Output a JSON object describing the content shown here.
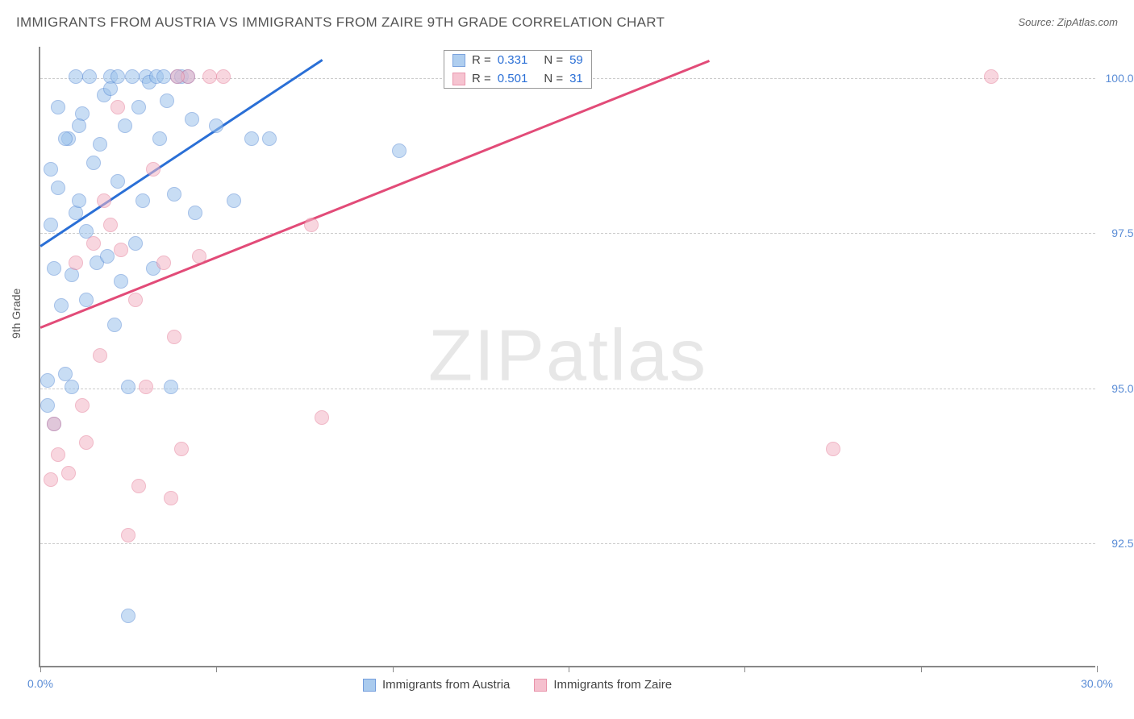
{
  "title": "IMMIGRANTS FROM AUSTRIA VS IMMIGRANTS FROM ZAIRE 9TH GRADE CORRELATION CHART",
  "source": "Source: ZipAtlas.com",
  "ylabel": "9th Grade",
  "watermark_a": "ZIP",
  "watermark_b": "atlas",
  "chart": {
    "type": "scatter",
    "xlim": [
      0,
      30
    ],
    "ylim": [
      90.5,
      100.5
    ],
    "yticks": [
      {
        "v": 92.5,
        "label": "92.5%"
      },
      {
        "v": 95.0,
        "label": "95.0%"
      },
      {
        "v": 97.5,
        "label": "97.5%"
      },
      {
        "v": 100.0,
        "label": "100.0%"
      }
    ],
    "xticks_major": [
      0,
      30
    ],
    "xticks_minor": [
      5,
      10,
      15,
      20,
      25
    ],
    "xlabels": [
      {
        "v": 0,
        "label": "0.0%"
      },
      {
        "v": 30,
        "label": "30.0%"
      }
    ],
    "background_color": "#ffffff",
    "grid_color": "#cccccc",
    "series": [
      {
        "name": "Immigrants from Austria",
        "color_fill": "#9cc3ec",
        "color_stroke": "#5b8dd6",
        "fill_opacity": 0.55,
        "marker_radius": 9,
        "r_value": "0.331",
        "n_value": "59",
        "trend": {
          "x1": 0,
          "y1": 97.3,
          "x2": 8.0,
          "y2": 100.3,
          "color": "#2a6fd6"
        },
        "points": [
          [
            0.3,
            97.6
          ],
          [
            0.5,
            98.2
          ],
          [
            0.4,
            96.9
          ],
          [
            0.8,
            99.0
          ],
          [
            1.0,
            100.0
          ],
          [
            1.2,
            99.4
          ],
          [
            1.4,
            100.0
          ],
          [
            1.5,
            98.6
          ],
          [
            1.6,
            97.0
          ],
          [
            1.8,
            99.7
          ],
          [
            2.0,
            100.0
          ],
          [
            2.0,
            99.8
          ],
          [
            2.2,
            98.3
          ],
          [
            2.2,
            100.0
          ],
          [
            2.3,
            96.7
          ],
          [
            2.4,
            99.2
          ],
          [
            2.6,
            100.0
          ],
          [
            2.7,
            97.3
          ],
          [
            2.8,
            99.5
          ],
          [
            2.9,
            98.0
          ],
          [
            3.0,
            100.0
          ],
          [
            3.1,
            99.9
          ],
          [
            3.2,
            96.9
          ],
          [
            3.3,
            100.0
          ],
          [
            3.4,
            99.0
          ],
          [
            3.5,
            100.0
          ],
          [
            3.6,
            99.6
          ],
          [
            3.7,
            95.0
          ],
          [
            3.8,
            98.1
          ],
          [
            3.9,
            100.0
          ],
          [
            4.0,
            100.0
          ],
          [
            4.2,
            100.0
          ],
          [
            4.3,
            99.3
          ],
          [
            4.4,
            97.8
          ],
          [
            1.0,
            97.8
          ],
          [
            0.6,
            96.3
          ],
          [
            0.7,
            95.2
          ],
          [
            0.9,
            95.0
          ],
          [
            1.1,
            98.0
          ],
          [
            1.3,
            97.5
          ],
          [
            1.7,
            98.9
          ],
          [
            1.9,
            97.1
          ],
          [
            2.1,
            96.0
          ],
          [
            2.5,
            95.0
          ],
          [
            0.2,
            94.7
          ],
          [
            0.4,
            94.4
          ],
          [
            5.0,
            99.2
          ],
          [
            5.5,
            98.0
          ],
          [
            6.0,
            99.0
          ],
          [
            6.5,
            99.0
          ],
          [
            2.5,
            91.3
          ],
          [
            0.9,
            96.8
          ],
          [
            1.3,
            96.4
          ],
          [
            0.5,
            99.5
          ],
          [
            0.7,
            99.0
          ],
          [
            0.3,
            98.5
          ],
          [
            0.2,
            95.1
          ],
          [
            10.2,
            98.8
          ],
          [
            1.1,
            99.2
          ]
        ]
      },
      {
        "name": "Immigrants from Zaire",
        "color_fill": "#f4b6c6",
        "color_stroke": "#e57f9b",
        "fill_opacity": 0.55,
        "marker_radius": 9,
        "r_value": "0.501",
        "n_value": "31",
        "trend": {
          "x1": 0,
          "y1": 96.0,
          "x2": 19.0,
          "y2": 100.3,
          "color": "#e24b78"
        },
        "points": [
          [
            0.4,
            94.4
          ],
          [
            0.5,
            93.9
          ],
          [
            0.8,
            93.6
          ],
          [
            1.0,
            97.0
          ],
          [
            1.2,
            94.7
          ],
          [
            1.3,
            94.1
          ],
          [
            1.5,
            97.3
          ],
          [
            1.7,
            95.5
          ],
          [
            1.8,
            98.0
          ],
          [
            2.0,
            97.6
          ],
          [
            2.2,
            99.5
          ],
          [
            2.3,
            97.2
          ],
          [
            2.5,
            92.6
          ],
          [
            2.7,
            96.4
          ],
          [
            2.8,
            93.4
          ],
          [
            3.0,
            95.0
          ],
          [
            3.2,
            98.5
          ],
          [
            3.5,
            97.0
          ],
          [
            3.7,
            93.2
          ],
          [
            3.8,
            95.8
          ],
          [
            4.0,
            94.0
          ],
          [
            4.2,
            100.0
          ],
          [
            4.5,
            97.1
          ],
          [
            4.8,
            100.0
          ],
          [
            5.2,
            100.0
          ],
          [
            7.7,
            97.6
          ],
          [
            8.0,
            94.5
          ],
          [
            3.9,
            100.0
          ],
          [
            22.5,
            94.0
          ],
          [
            27.0,
            100.0
          ],
          [
            0.3,
            93.5
          ]
        ]
      }
    ]
  },
  "legend_bottom": [
    {
      "label": "Immigrants from Austria",
      "fill": "#9cc3ec",
      "stroke": "#5b8dd6"
    },
    {
      "label": "Immigrants from Zaire",
      "fill": "#f4b6c6",
      "stroke": "#e57f9b"
    }
  ]
}
